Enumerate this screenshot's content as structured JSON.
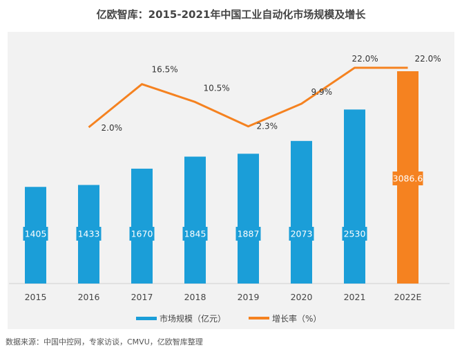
{
  "title": "亿欧智库：2015-2021年中国工业自动化市场规模及增长",
  "source": "数据来源：中国中控网，专家访谈，CMVU，亿欧智库整理",
  "colors": {
    "bar": "#1b9ed8",
    "bar_forecast": "#f58220",
    "line": "#f58220",
    "panel_bg": "#f2f2f2",
    "label_text": "#ffffff",
    "axis_text": "#444444"
  },
  "chart_data": {
    "type": "bar",
    "categories": [
      "2015",
      "2016",
      "2017",
      "2018",
      "2019",
      "2020",
      "2021",
      "2022E"
    ],
    "series": [
      {
        "name": "市场规模（亿元）",
        "type": "bar",
        "values": [
          1405,
          1433,
          1670,
          1845,
          1887,
          2073,
          2530,
          3086.6
        ],
        "labels": [
          "1405",
          "1433",
          "1670",
          "1845",
          "1887",
          "2073",
          "2530",
          "3086.6"
        ]
      },
      {
        "name": "增长率（%）",
        "type": "line",
        "values": [
          null,
          2.0,
          16.5,
          10.5,
          2.3,
          9.9,
          22.0,
          22.0
        ],
        "labels": [
          "",
          "2.0%",
          "16.5%",
          "10.5%",
          "2.3%",
          "9.9%",
          "22.0%",
          "22.0%"
        ]
      }
    ],
    "forecast_category": "2022E",
    "legend": {
      "position": "bottom"
    },
    "grid": false
  }
}
